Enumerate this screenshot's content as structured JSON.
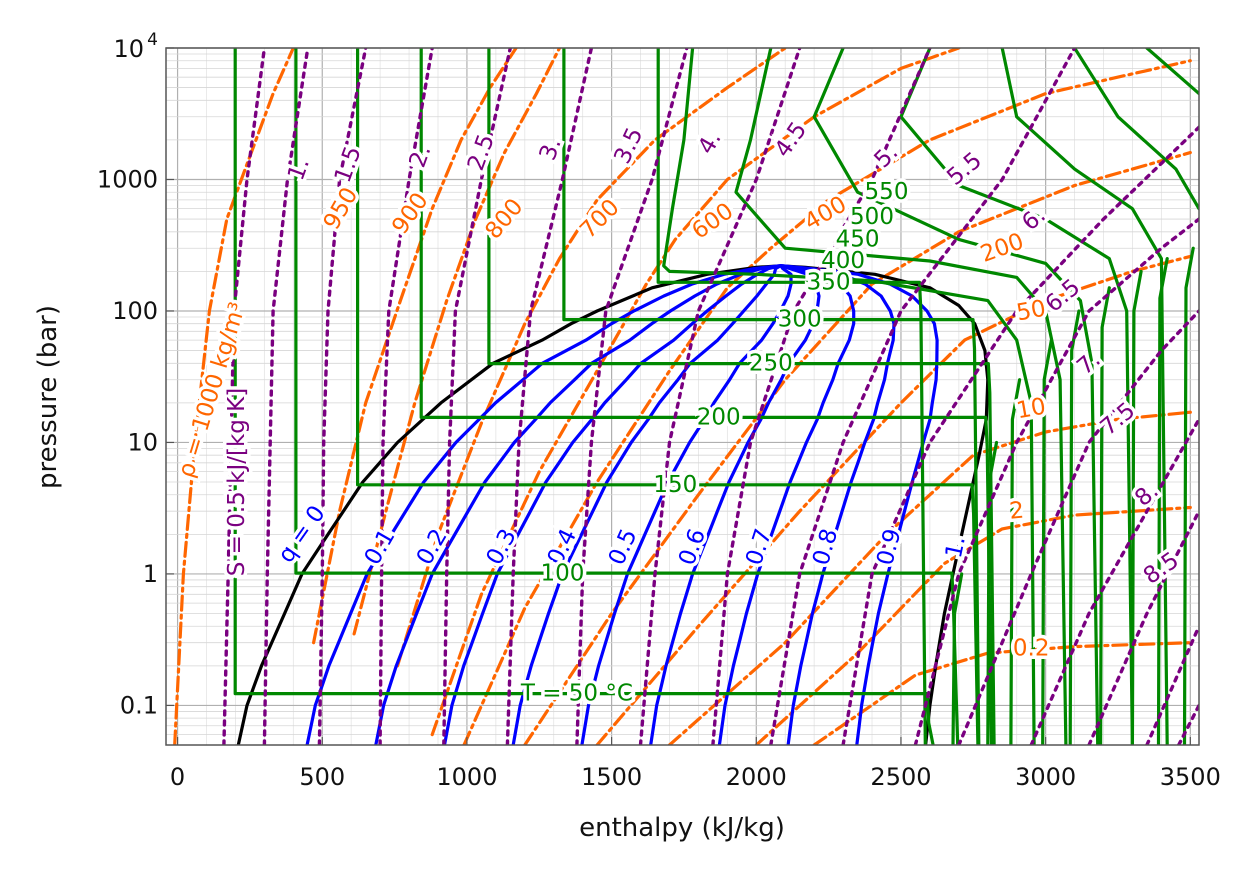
{
  "chart_data": {
    "type": "line",
    "title": "",
    "xlabel": "enthalpy (kJ/kg)",
    "ylabel": "pressure (bar)",
    "xlim": [
      -40,
      3530
    ],
    "ylim": [
      0.05,
      10000
    ],
    "y_scale": "log",
    "grid": true,
    "x_ticks": [
      "0",
      "500",
      "1000",
      "1500",
      "2000",
      "2500",
      "3000",
      "3500"
    ],
    "x_tick_values": [
      0,
      500,
      1000,
      1500,
      2000,
      2500,
      3000,
      3500
    ],
    "y_ticks": [
      "0.1",
      "1",
      "10",
      "100",
      "1000"
    ],
    "y_tick_values": [
      0.1,
      1,
      10,
      100,
      1000
    ],
    "y_top_tick_base": "10",
    "y_top_tick_exp": "4",
    "y_top_tick_value": 10000,
    "colors": {
      "saturation": "#000000",
      "quality": "#0000ff",
      "temperature": "#008800",
      "entropy": "#7a0080",
      "density": "#ff6600",
      "grid": "#bbbbbb",
      "frame": "#555555"
    },
    "saturation_dome": [
      [
        210,
        0.05
      ],
      [
        240,
        0.1
      ],
      [
        290,
        0.2
      ],
      [
        370,
        0.5
      ],
      [
        430,
        1.0
      ],
      [
        520,
        2.0
      ],
      [
        640,
        5.0
      ],
      [
        760,
        10.0
      ],
      [
        910,
        20.0
      ],
      [
        1090,
        40.0
      ],
      [
        1260,
        60.0
      ],
      [
        1360,
        80.0
      ],
      [
        1450,
        100.0
      ],
      [
        1640,
        150.0
      ],
      [
        1830,
        190.0
      ],
      [
        2000,
        215.0
      ],
      [
        2085,
        220.6
      ],
      [
        2170,
        215.0
      ],
      [
        2410,
        190.0
      ],
      [
        2600,
        150.0
      ],
      [
        2700,
        110.0
      ],
      [
        2755,
        80.0
      ],
      [
        2790,
        50.0
      ],
      [
        2800,
        30.0
      ],
      [
        2795,
        15.0
      ],
      [
        2770,
        8.0
      ],
      [
        2740,
        4.0
      ],
      [
        2710,
        2.0
      ],
      [
        2680,
        1.0
      ],
      [
        2650,
        0.5
      ],
      [
        2620,
        0.2
      ],
      [
        2600,
        0.1
      ],
      [
        2585,
        0.05
      ]
    ],
    "quality_lines": [
      {
        "label": "q = 0",
        "q": 0
      },
      {
        "label": "0.1",
        "q": 0.1
      },
      {
        "label": "0.2",
        "q": 0.2
      },
      {
        "label": "0.3",
        "q": 0.3
      },
      {
        "label": "0.4",
        "q": 0.4
      },
      {
        "label": "0.5",
        "q": 0.5
      },
      {
        "label": "0.6",
        "q": 0.6
      },
      {
        "label": "0.7",
        "q": 0.7
      },
      {
        "label": "0.8",
        "q": 0.8
      },
      {
        "label": "0.9",
        "q": 0.9
      },
      {
        "label": "1.",
        "q": 1.0
      }
    ],
    "temperature_isotherms": [
      {
        "label": "T = 50 °C",
        "T": 50,
        "psat": 0.123,
        "hf": 209,
        "hg": 2591
      },
      {
        "label": "100",
        "T": 100,
        "psat": 1.014,
        "hf": 419,
        "hg": 2676
      },
      {
        "label": "150",
        "T": 150,
        "psat": 4.76,
        "hf": 632,
        "hg": 2746
      },
      {
        "label": "200",
        "T": 200,
        "psat": 15.5,
        "hf": 852,
        "hg": 2793
      },
      {
        "label": "250",
        "T": 250,
        "psat": 39.8,
        "hf": 1086,
        "hg": 2802
      },
      {
        "label": "300",
        "T": 300,
        "psat": 85.9,
        "hf": 1345,
        "hg": 2749
      },
      {
        "label": "350",
        "T": 350,
        "psat": 165.3,
        "hf": 1671,
        "hg": 2564
      },
      {
        "label": "400",
        "T": 400
      },
      {
        "label": "450",
        "T": 450
      },
      {
        "label": "500",
        "T": 500
      },
      {
        "label": "550",
        "T": 550
      }
    ],
    "temperature_unlabeled": [
      600,
      650,
      700,
      750,
      800
    ],
    "entropy_lines": [
      {
        "label": "S = 0.5 kJ/[kg K]",
        "s": 0.5
      },
      {
        "label": "1.",
        "s": 1.0
      },
      {
        "label": "1.5",
        "s": 1.5
      },
      {
        "label": "2.",
        "s": 2.0
      },
      {
        "label": "2.5",
        "s": 2.5
      },
      {
        "label": "3.",
        "s": 3.0
      },
      {
        "label": "3.5",
        "s": 3.5
      },
      {
        "label": "4.",
        "s": 4.0
      },
      {
        "label": "4.5",
        "s": 4.5
      },
      {
        "label": "5.",
        "s": 5.0
      },
      {
        "label": "5.5",
        "s": 5.5
      },
      {
        "label": "6.",
        "s": 6.0
      },
      {
        "label": "6.5",
        "s": 6.5
      },
      {
        "label": "7.",
        "s": 7.0
      },
      {
        "label": "7.5",
        "s": 7.5
      },
      {
        "label": "8.",
        "s": 8.0
      },
      {
        "label": "8.5",
        "s": 8.5
      }
    ],
    "density_lines": [
      {
        "label": "ρ = 1000 kg/m³",
        "rho": 1000
      },
      {
        "label": "950",
        "rho": 950
      },
      {
        "label": "900",
        "rho": 900
      },
      {
        "label": "800",
        "rho": 800
      },
      {
        "label": "700",
        "rho": 700
      },
      {
        "label": "600",
        "rho": 600
      },
      {
        "label": "400",
        "rho": 400
      },
      {
        "label": "200",
        "rho": 200
      },
      {
        "label": "50",
        "rho": 50
      },
      {
        "label": "10",
        "rho": 10
      },
      {
        "label": "2",
        "rho": 2
      },
      {
        "label": "0.2",
        "rho": 0.2
      }
    ]
  }
}
